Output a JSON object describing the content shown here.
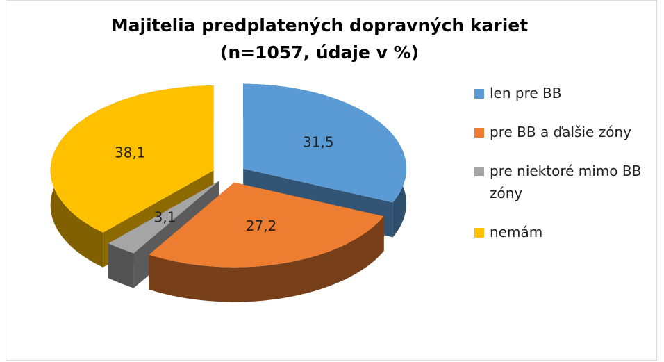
{
  "chart_data": {
    "type": "pie3d",
    "title": "Majitelia predplatených dopravných kariet",
    "subtitle": "(n=1057, údaje v %)",
    "categories": [
      "len pre BB",
      "pre BB a ďalšie zóny",
      "pre niektoré mimo BB zóny",
      "nemám"
    ],
    "values": [
      31.5,
      27.2,
      3.1,
      38.1
    ],
    "value_labels": [
      "31,5",
      "27,2",
      "3,1",
      "38,1"
    ],
    "colors": [
      "#5b9bd5",
      "#ed7d31",
      "#a5a5a5",
      "#ffc000"
    ],
    "legend": "right"
  }
}
